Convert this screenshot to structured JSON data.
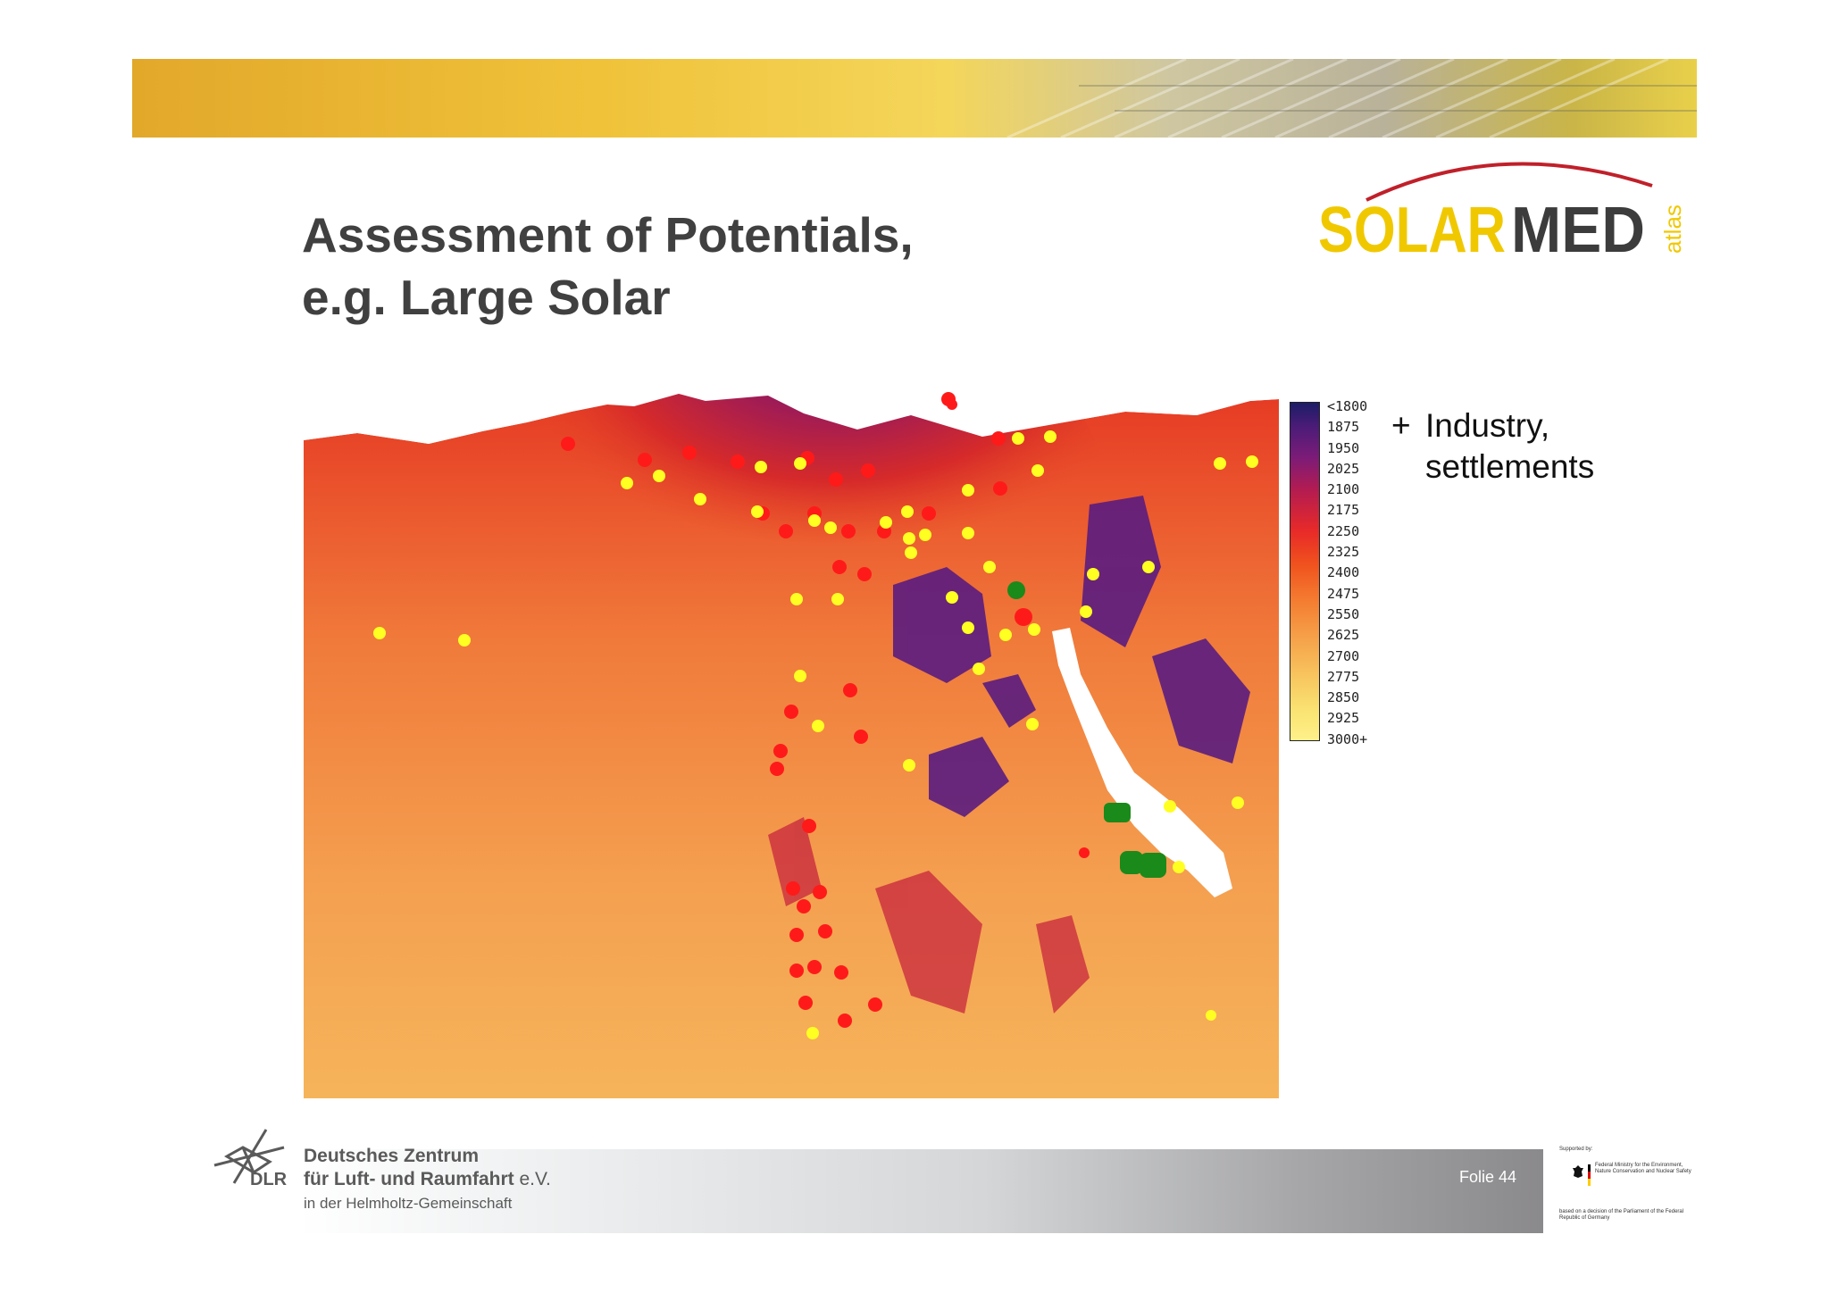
{
  "header": {
    "title_line1": "Assessment of Potentials,",
    "title_line2": "e.g. Large Solar",
    "logo_text_yellow": "SOLAR",
    "logo_text_gray": "MED",
    "logo_text_atlas": "atlas"
  },
  "legend": {
    "labels": [
      "<1800",
      "1875",
      "1950",
      "2025",
      "2100",
      "2175",
      "2250",
      "2325",
      "2400",
      "2475",
      "2550",
      "2625",
      "2700",
      "2775",
      "2850",
      "2925",
      "3000+"
    ]
  },
  "note": {
    "bullet": "+",
    "line1": "Industry,",
    "line2": "settlements"
  },
  "footer": {
    "org_line1": "Deutsches Zentrum",
    "org_line2": "für Luft- und Raumfahrt",
    "org_ev": " e.V.",
    "org_line3": "in der Helmholtz-Gemeinschaft",
    "abbr": "DLR",
    "page_label": "Folie 44",
    "supported_by": "Supported by:",
    "ministry": "Federal Ministry for the Environment, Nature Conservation and Nuclear Safety",
    "basis": "based on a decision of the Parliament of the Federal Republic of Germany"
  },
  "colors": {
    "title": "#404040",
    "logo_yellow": "#f0c800",
    "logo_gray": "#3c3c3c",
    "logo_arc": "#c0202a"
  }
}
